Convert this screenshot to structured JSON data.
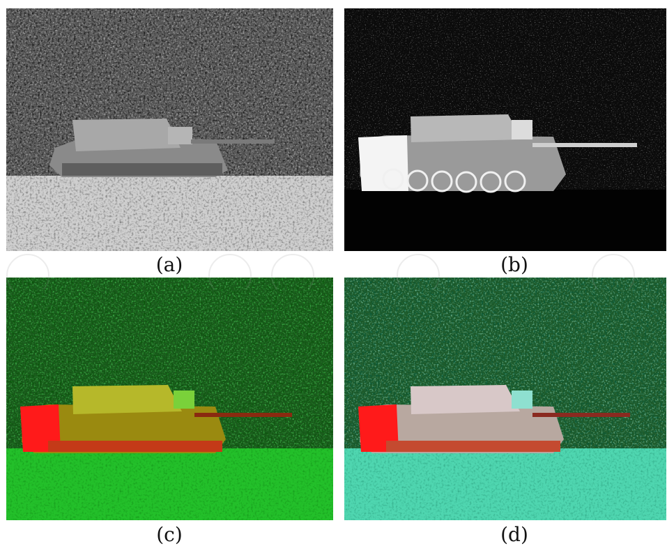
{
  "figure": {
    "panels": [
      {
        "id": "a",
        "caption": "(a)",
        "rendering": "grayscale-visible",
        "subject": "tank"
      },
      {
        "id": "b",
        "caption": "(b)",
        "rendering": "thermal-infrared",
        "subject": "tank"
      },
      {
        "id": "c",
        "caption": "(c)",
        "rendering": "false-color-red-green",
        "subject": "tank"
      },
      {
        "id": "d",
        "caption": "(d)",
        "rendering": "false-color-fused",
        "subject": "tank"
      }
    ]
  },
  "colors": {
    "background": "#ffffff",
    "caption_text": "#111111",
    "thermal_hot": "#f4f4f4",
    "fusion_red": "#ff1a1a",
    "vegetation_green": "#23a82a",
    "fused_cyan": "#4fd6b0"
  }
}
